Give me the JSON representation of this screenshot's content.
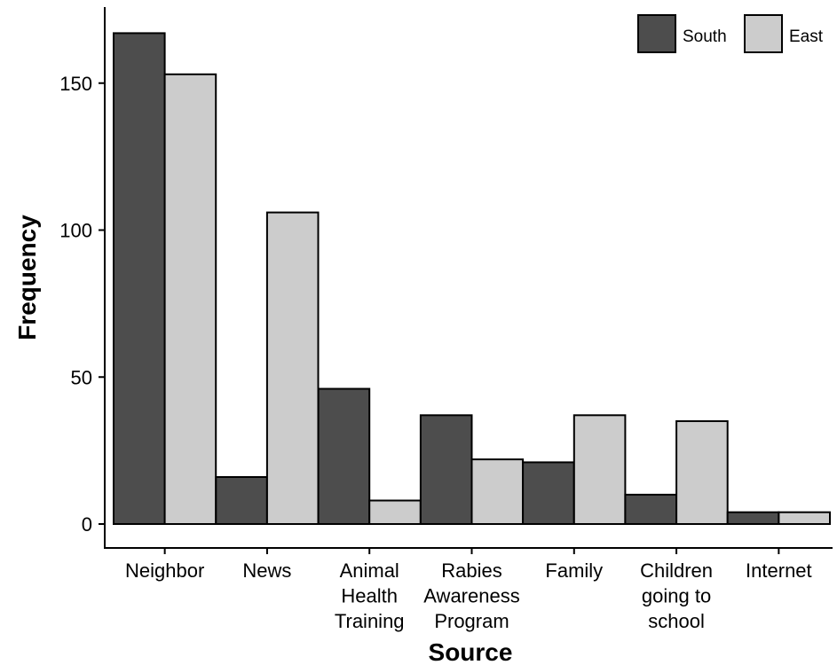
{
  "chart_data": {
    "type": "bar",
    "title": "",
    "xlabel": "Source",
    "ylabel": "Frequency",
    "categories": [
      [
        "Neighbor"
      ],
      [
        "News"
      ],
      [
        "Animal",
        "Health",
        "Training"
      ],
      [
        "Rabies",
        "Awareness",
        "Program"
      ],
      [
        "Family"
      ],
      [
        "Children",
        "going to",
        "school"
      ],
      [
        "Internet"
      ]
    ],
    "series": [
      {
        "name": "South",
        "color": "#4d4d4d",
        "values": [
          167,
          16,
          46,
          37,
          21,
          10,
          4
        ]
      },
      {
        "name": "East",
        "color": "#cccccc",
        "values": [
          153,
          106,
          8,
          22,
          37,
          35,
          4
        ]
      }
    ],
    "ylim": [
      0,
      175
    ],
    "yticks": [
      0,
      50,
      100,
      150
    ],
    "grid": false,
    "legend_position": "top-right"
  }
}
